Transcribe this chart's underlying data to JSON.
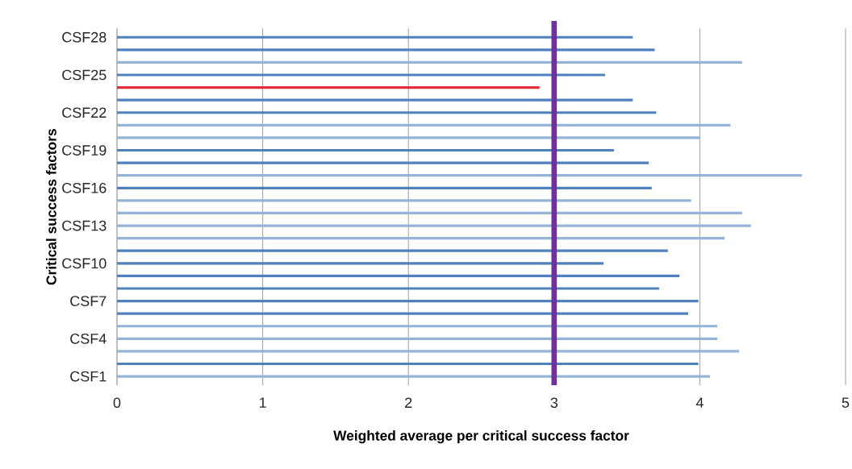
{
  "chart_data": {
    "type": "bar",
    "orientation": "horizontal",
    "xlabel": "Weighted average per critical success factor",
    "ylabel": "Critical success factors",
    "categories": [
      "CSF28",
      null,
      null,
      "CSF25",
      null,
      null,
      "CSF22",
      null,
      null,
      "CSF19",
      null,
      null,
      "CSF16",
      null,
      null,
      "CSF13",
      null,
      null,
      "CSF10",
      null,
      null,
      "CSF7",
      null,
      null,
      "CSF4",
      null,
      null,
      "CSF1"
    ],
    "values": [
      3.54,
      3.69,
      4.29,
      3.35,
      2.9,
      3.54,
      3.7,
      4.21,
      4.0,
      3.41,
      3.65,
      4.7,
      3.67,
      3.94,
      4.29,
      4.35,
      4.17,
      3.78,
      3.34,
      3.86,
      3.72,
      3.99,
      3.92,
      4.12,
      4.12,
      4.27,
      3.99,
      4.07
    ],
    "colors": [
      "#4f81bd",
      "#4f81bd",
      "#95b3d7",
      "#4f81bd",
      "#e0303c",
      "#4f81bd",
      "#4f81bd",
      "#95b3d7",
      "#95b3d7",
      "#4f81bd",
      "#4f81bd",
      "#95b3d7",
      "#4f81bd",
      "#95b3d7",
      "#95b3d7",
      "#95b3d7",
      "#95b3d7",
      "#4f81bd",
      "#4f81bd",
      "#4f81bd",
      "#4f81bd",
      "#4f81bd",
      "#4f81bd",
      "#95b3d7",
      "#95b3d7",
      "#95b3d7",
      "#4f81bd",
      "#95b3d7"
    ],
    "xlim": [
      0,
      5
    ],
    "xticks": [
      0,
      1,
      2,
      3,
      4,
      5
    ],
    "grid": "x",
    "ref_lines": [
      {
        "axis": "x",
        "value": 3,
        "color": "#7030a0"
      }
    ]
  }
}
